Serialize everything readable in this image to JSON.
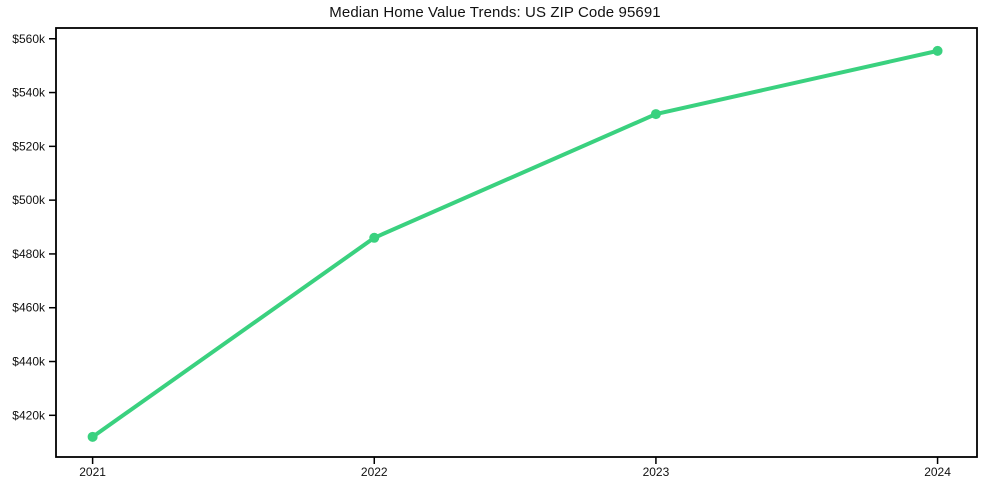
{
  "figure": {
    "background": "#ffffff",
    "text_color": "#111111",
    "axis_color": "#000000"
  },
  "chart_data": {
    "type": "line",
    "title": "Median Home Value Trends: US ZIP Code 95691",
    "xlabel": "",
    "ylabel": "",
    "x": [
      2021,
      2022,
      2023,
      2024
    ],
    "x_tick_labels": [
      "2021",
      "2022",
      "2023",
      "2024"
    ],
    "series": [
      {
        "name": "Median home value",
        "values": [
          412000,
          486000,
          532000,
          555500
        ],
        "color": "#3ad17f",
        "marker": "circle",
        "line_width": 4
      }
    ],
    "y_ticks": [
      {
        "value": 420000,
        "label": "$420k"
      },
      {
        "value": 440000,
        "label": "$440k"
      },
      {
        "value": 460000,
        "label": "$460k"
      },
      {
        "value": 480000,
        "label": "$480k"
      },
      {
        "value": 500000,
        "label": "$500k"
      },
      {
        "value": 520000,
        "label": "$520k"
      },
      {
        "value": 540000,
        "label": "$540k"
      },
      {
        "value": 560000,
        "label": "$560k"
      }
    ],
    "xlim": [
      2020.87,
      2024.14
    ],
    "ylim": [
      404500,
      564000
    ],
    "grid": false,
    "legend": "none"
  }
}
